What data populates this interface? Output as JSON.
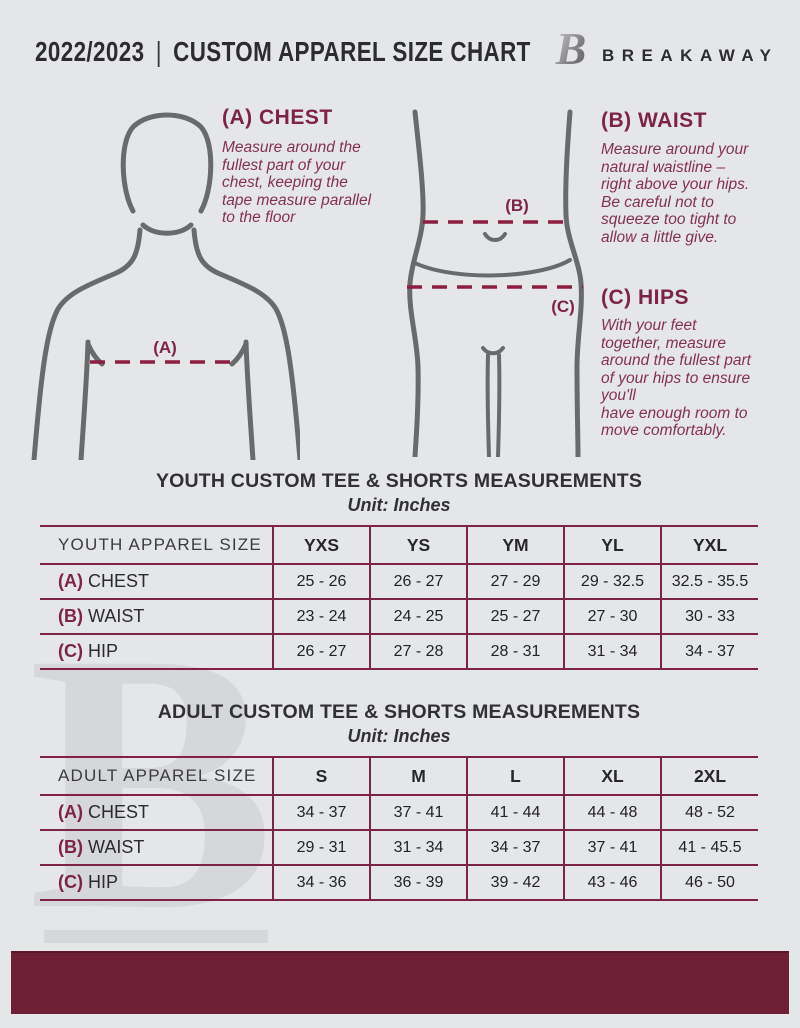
{
  "header": {
    "year": "2022/2023",
    "divider": "|",
    "title": "CUSTOM APPAREL SIZE CHART",
    "brand": "BREAKAWAY",
    "logo_letter": "B"
  },
  "guide": {
    "chest": {
      "marker": "(A)",
      "heading": "(A) CHEST",
      "body": "Measure around the\nfullest part of your\nchest, keeping the\ntape measure parallel\nto the floor"
    },
    "waist": {
      "marker": "(B)",
      "heading": "(B) WAIST",
      "body": "Measure around your\nnatural waistline –\nright above your hips.\nBe careful not to\nsqueeze too tight to\nallow a little give."
    },
    "hips": {
      "marker": "(C)",
      "heading": "(C) HIPS",
      "body": "With your feet\ntogether, measure\naround the fullest part\nof your hips to ensure\nyou'll\nhave enough room to\nmove comfortably."
    }
  },
  "youth_table": {
    "title": "YOUTH CUSTOM TEE & SHORTS MEASUREMENTS",
    "subtitle": "Unit: Inches",
    "label_header": "YOUTH APPAREL SIZE",
    "size_headers": [
      "YXS",
      "YS",
      "YM",
      "YL",
      "YXL"
    ],
    "rows": [
      {
        "marker": "(A)",
        "label": "CHEST",
        "values": [
          "25 - 26",
          "26 - 27",
          "27 - 29",
          "29 - 32.5",
          "32.5 - 35.5"
        ]
      },
      {
        "marker": "(B)",
        "label": "WAIST",
        "values": [
          "23 - 24",
          "24 - 25",
          "25 - 27",
          "27 - 30",
          "30 - 33"
        ]
      },
      {
        "marker": "(C)",
        "label": "HIP",
        "values": [
          "26 - 27",
          "27 - 28",
          "28 - 31",
          "31 - 34",
          "34 - 37"
        ]
      }
    ]
  },
  "adult_table": {
    "title": "ADULT CUSTOM TEE & SHORTS MEASUREMENTS",
    "subtitle": "Unit: Inches",
    "label_header": "ADULT APPAREL SIZE",
    "size_headers": [
      "S",
      "M",
      "L",
      "XL",
      "2XL"
    ],
    "rows": [
      {
        "marker": "(A)",
        "label": "CHEST",
        "values": [
          "34 - 37",
          "37 - 41",
          "41 - 44",
          "44 - 48",
          "48 - 52"
        ]
      },
      {
        "marker": "(B)",
        "label": "WAIST",
        "values": [
          "29 - 31",
          "31 - 34",
          "34 - 37",
          "37 - 41",
          "41 - 45.5"
        ]
      },
      {
        "marker": "(C)",
        "label": "HIP",
        "values": [
          "34 - 36",
          "36 - 39",
          "39 - 42",
          "43 - 46",
          "46 - 50"
        ]
      }
    ]
  },
  "colors": {
    "background": "#E5E6E8",
    "maroon_accent": "#7D2444",
    "maroon_body_text": "#833053",
    "dashed_line": "#8C1F3F",
    "footer_bar": "#6F1F36",
    "figure_gray": "#696A6C",
    "ink": "#2C2C2F"
  }
}
